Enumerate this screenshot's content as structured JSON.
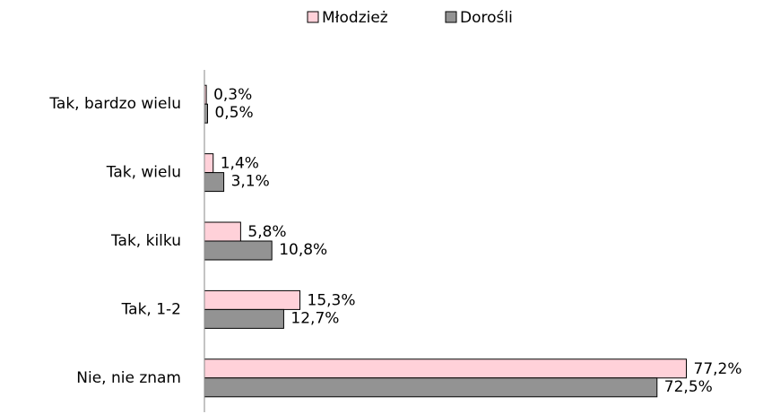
{
  "chart_data": {
    "type": "hbar",
    "categories": [
      "Tak, bardzo wielu",
      "Tak, wielu",
      "Tak, kilku",
      "Tak, 1-2",
      "Nie, nie znam"
    ],
    "series": [
      {
        "name": "Młodzież",
        "color": "#ffd1d9",
        "values": [
          0.3,
          1.4,
          5.8,
          15.3,
          77.2
        ],
        "value_labels": [
          "0,3%",
          "1,4%",
          "5,8%",
          "15,3%",
          "77,2%"
        ]
      },
      {
        "name": "Dorośli",
        "color": "#939393",
        "values": [
          0.5,
          3.1,
          10.8,
          12.7,
          72.5
        ],
        "value_labels": [
          "0,5%",
          "3,1%",
          "10,8%",
          "12,7%",
          "72,5%"
        ]
      }
    ],
    "xlim": [
      0,
      80
    ],
    "legend": "top"
  }
}
